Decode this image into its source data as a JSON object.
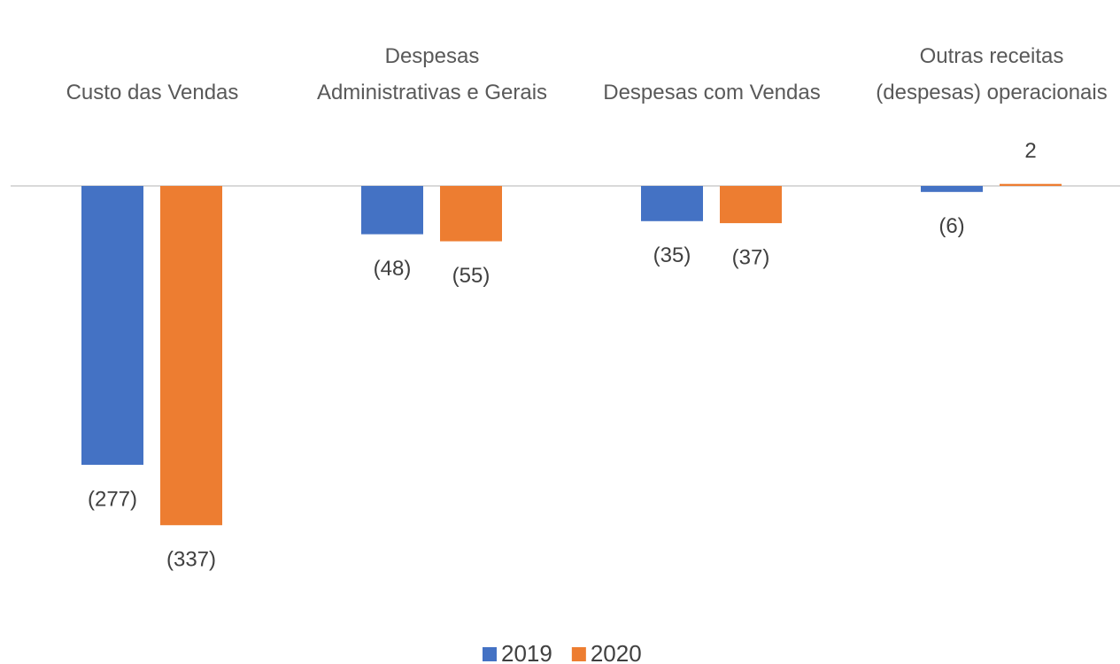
{
  "chart_data": {
    "type": "bar",
    "categories": [
      "Custo das Vendas",
      "Despesas Administrativas e Gerais",
      "Despesas com Vendas",
      "Outras receitas (despesas) operacionais"
    ],
    "series": [
      {
        "name": "2019",
        "color": "#4472c4",
        "values": [
          -277,
          -48,
          -35,
          -6
        ],
        "value_labels": [
          "(277)",
          "(48)",
          "(35)",
          "(6)"
        ]
      },
      {
        "name": "2020",
        "color": "#ed7d31",
        "values": [
          -337,
          -55,
          -37,
          2
        ],
        "value_labels": [
          "(337)",
          "(55)",
          "(37)",
          "2"
        ]
      }
    ],
    "legend": "bottom"
  }
}
